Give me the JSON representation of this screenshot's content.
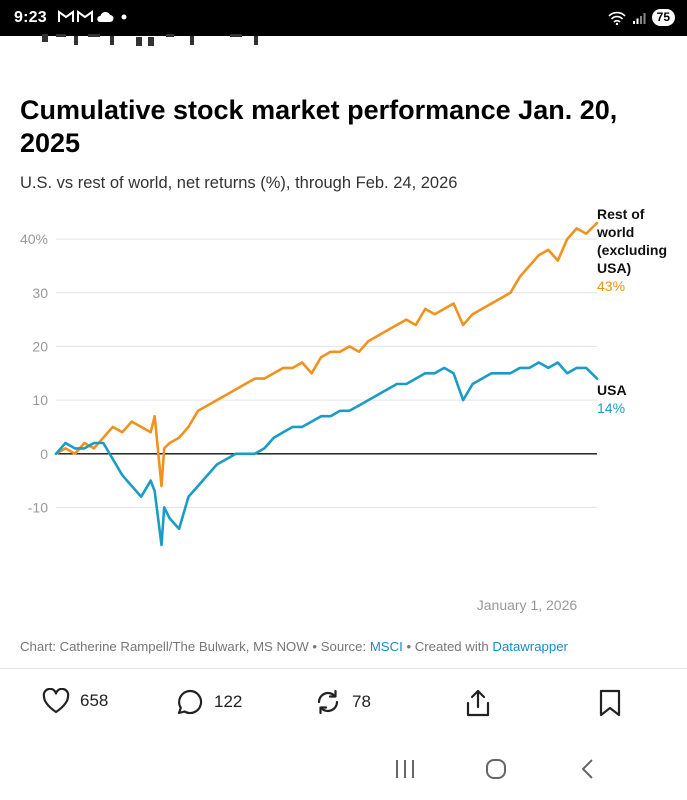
{
  "status_bar": {
    "time": "9:23",
    "battery": "75"
  },
  "chart_data": {
    "type": "line",
    "title": "Cumulative stock market performance Jan. 20, 2025",
    "title_lines": [
      "Cumulative stock market performance Jan. 20,",
      "2025"
    ],
    "subtitle": "U.S. vs rest of world, net returns (%), through Feb. 24, 2026",
    "ylim": [
      -17,
      43
    ],
    "y_ticks": [
      {
        "value": 40,
        "label": "40%"
      },
      {
        "value": 30,
        "label": "30"
      },
      {
        "value": 20,
        "label": "20"
      },
      {
        "value": 10,
        "label": "10"
      },
      {
        "value": 0,
        "label": "0"
      },
      {
        "value": -10,
        "label": "-10"
      }
    ],
    "x_range": [
      "2025-01-20",
      "2026-02-24"
    ],
    "x_annotation": {
      "date": "2026-01-01",
      "label": "January 1, 2026"
    },
    "legend": "direct labels at right end of lines",
    "series": [
      {
        "name": "Rest of world (excluding USA)",
        "name_lines": [
          "Rest of",
          "world",
          "(excluding",
          "USA)"
        ],
        "end_label": "43%",
        "color": "#f0921d",
        "x": [
          "2025-01-20",
          "2025-01-27",
          "2025-02-03",
          "2025-02-10",
          "2025-02-17",
          "2025-02-24",
          "2025-03-03",
          "2025-03-10",
          "2025-03-17",
          "2025-03-24",
          "2025-03-31",
          "2025-04-03",
          "2025-04-08",
          "2025-04-10",
          "2025-04-14",
          "2025-04-21",
          "2025-04-28",
          "2025-05-05",
          "2025-05-12",
          "2025-05-19",
          "2025-05-26",
          "2025-06-02",
          "2025-06-09",
          "2025-06-16",
          "2025-06-23",
          "2025-06-30",
          "2025-07-07",
          "2025-07-14",
          "2025-07-21",
          "2025-07-28",
          "2025-08-04",
          "2025-08-11",
          "2025-08-18",
          "2025-08-25",
          "2025-09-01",
          "2025-09-08",
          "2025-09-15",
          "2025-09-22",
          "2025-09-29",
          "2025-10-06",
          "2025-10-13",
          "2025-10-20",
          "2025-10-27",
          "2025-11-03",
          "2025-11-10",
          "2025-11-17",
          "2025-11-24",
          "2025-12-01",
          "2025-12-08",
          "2025-12-15",
          "2025-12-22",
          "2025-12-29",
          "2026-01-05",
          "2026-01-12",
          "2026-01-19",
          "2026-01-26",
          "2026-02-02",
          "2026-02-09",
          "2026-02-16",
          "2026-02-24"
        ],
        "values": [
          0,
          1,
          0,
          2,
          1,
          3,
          5,
          4,
          6,
          5,
          4,
          7,
          -6,
          1,
          2,
          3,
          5,
          8,
          9,
          10,
          11,
          12,
          13,
          14,
          14,
          15,
          16,
          16,
          17,
          15,
          18,
          19,
          19,
          20,
          19,
          21,
          22,
          23,
          24,
          25,
          24,
          27,
          26,
          27,
          28,
          24,
          26,
          27,
          28,
          29,
          30,
          33,
          35,
          37,
          38,
          36,
          40,
          42,
          41,
          43
        ]
      },
      {
        "name": "USA",
        "name_lines": [
          "USA"
        ],
        "end_label": "14%",
        "color": "#1b9cc4",
        "x": [
          "2025-01-20",
          "2025-01-27",
          "2025-02-03",
          "2025-02-10",
          "2025-02-17",
          "2025-02-24",
          "2025-03-03",
          "2025-03-10",
          "2025-03-17",
          "2025-03-24",
          "2025-03-31",
          "2025-04-03",
          "2025-04-08",
          "2025-04-10",
          "2025-04-14",
          "2025-04-21",
          "2025-04-28",
          "2025-05-05",
          "2025-05-12",
          "2025-05-19",
          "2025-05-26",
          "2025-06-02",
          "2025-06-09",
          "2025-06-16",
          "2025-06-23",
          "2025-06-30",
          "2025-07-07",
          "2025-07-14",
          "2025-07-21",
          "2025-07-28",
          "2025-08-04",
          "2025-08-11",
          "2025-08-18",
          "2025-08-25",
          "2025-09-01",
          "2025-09-08",
          "2025-09-15",
          "2025-09-22",
          "2025-09-29",
          "2025-10-06",
          "2025-10-13",
          "2025-10-20",
          "2025-10-27",
          "2025-11-03",
          "2025-11-10",
          "2025-11-17",
          "2025-11-24",
          "2025-12-01",
          "2025-12-08",
          "2025-12-15",
          "2025-12-22",
          "2025-12-29",
          "2026-01-05",
          "2026-01-12",
          "2026-01-19",
          "2026-01-26",
          "2026-02-02",
          "2026-02-09",
          "2026-02-16",
          "2026-02-24"
        ],
        "values": [
          0,
          2,
          1,
          1,
          2,
          2,
          -1,
          -4,
          -6,
          -8,
          -5,
          -7,
          -17,
          -10,
          -12,
          -14,
          -8,
          -6,
          -4,
          -2,
          -1,
          0,
          0,
          0,
          1,
          3,
          4,
          5,
          5,
          6,
          7,
          7,
          8,
          8,
          9,
          10,
          11,
          12,
          13,
          13,
          14,
          15,
          15,
          16,
          15,
          10,
          13,
          14,
          15,
          15,
          15,
          16,
          16,
          17,
          16,
          17,
          15,
          16,
          16,
          14
        ]
      }
    ]
  },
  "footer": {
    "credit_prefix": "Chart: Catherine Rampell/The Bulwark, MS NOW • Source: ",
    "source_link": "MSCI",
    "created_prefix": " • Created with ",
    "tool_link": "Datawrapper"
  },
  "actions": {
    "likes": "658",
    "comments": "122",
    "reposts": "78"
  },
  "icons": {
    "like": "heart-icon",
    "comment": "speech-bubble-icon",
    "repost": "repost-arrows-icon",
    "share": "share-icon",
    "bookmark": "bookmark-icon"
  }
}
